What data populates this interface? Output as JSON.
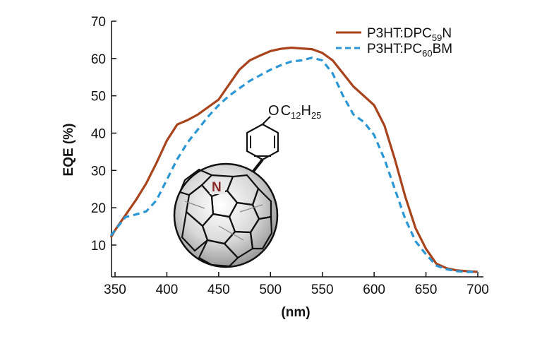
{
  "chart_data": {
    "type": "line",
    "xlabel": "(nm)",
    "ylabel": "EQE (%)",
    "xlim": [
      345,
      702
    ],
    "ylim": [
      0,
      70
    ],
    "xticks": [
      350,
      400,
      450,
      500,
      550,
      600,
      650,
      700
    ],
    "yticks": [
      10,
      20,
      30,
      40,
      50,
      60,
      70
    ],
    "grid": false,
    "legend_position": "top-right",
    "series": [
      {
        "name": "P3HT:DPC59N",
        "legend_base": "P3HT:DPC",
        "legend_sub": "59",
        "legend_tail": "N",
        "color": "#a8431c",
        "dash": "solid",
        "x": [
          346,
          350,
          360,
          370,
          380,
          390,
          400,
          410,
          420,
          430,
          440,
          450,
          460,
          470,
          480,
          490,
          500,
          510,
          520,
          530,
          540,
          550,
          560,
          570,
          580,
          590,
          600,
          610,
          620,
          630,
          640,
          650,
          660,
          670,
          680,
          690,
          700
        ],
        "y": [
          12,
          14,
          18,
          22,
          26.5,
          32,
          38,
          42.3,
          43.5,
          45,
          47,
          49,
          53,
          57,
          59.5,
          60.8,
          62,
          62.6,
          62.9,
          62.7,
          62.5,
          61.5,
          59.5,
          56,
          52.5,
          50,
          47.5,
          42,
          33,
          23,
          14.5,
          9,
          5,
          3.8,
          3.2,
          3,
          2.8
        ]
      },
      {
        "name": "P3HT:PC60BM",
        "legend_base": "P3HT:PC",
        "legend_sub": "60",
        "legend_tail": "BM",
        "color": "#2a96d4",
        "dash": "dashed",
        "x": [
          346,
          350,
          360,
          370,
          380,
          390,
          400,
          410,
          420,
          430,
          440,
          450,
          460,
          470,
          480,
          490,
          500,
          510,
          520,
          530,
          540,
          550,
          560,
          570,
          580,
          590,
          600,
          610,
          620,
          630,
          640,
          650,
          660,
          670,
          680,
          690,
          700
        ],
        "y": [
          12.5,
          14,
          17.5,
          18.2,
          19,
          22,
          27.5,
          33,
          37.5,
          41,
          44.5,
          47.5,
          50,
          52,
          54,
          55.5,
          57,
          58.2,
          59.2,
          59.5,
          60.2,
          59.5,
          56,
          50,
          45,
          43,
          39.5,
          33,
          25,
          17,
          11,
          7.5,
          4.5,
          3.5,
          3,
          2.8,
          2.8
        ]
      }
    ]
  },
  "molecule": {
    "substituent_o": "O",
    "substituent_c": "C",
    "substituent_c_sub": "12",
    "substituent_h": "H",
    "substituent_h_sub": "25",
    "nitrogen_label": "N"
  }
}
